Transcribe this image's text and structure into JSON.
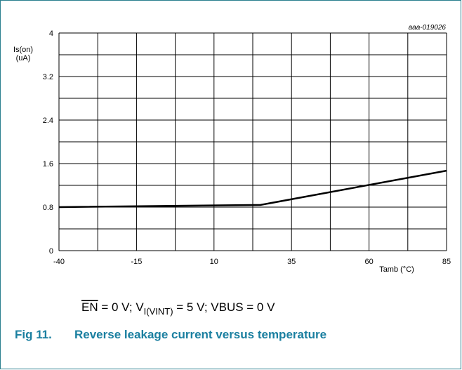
{
  "chart_data": {
    "type": "line",
    "code": "aaa-019026",
    "y_label": [
      "Is(on)",
      "(uA)"
    ],
    "x_label": "Tamb (°C)",
    "x": [
      -40,
      25,
      85
    ],
    "series": [
      {
        "color": "#000000",
        "values": [
          0.8,
          0.84,
          1.47
        ]
      }
    ],
    "xlim": [
      -40,
      85
    ],
    "xticks": [
      -40,
      -15,
      10,
      35,
      60,
      85
    ],
    "xminor_ticks": [
      -27.5,
      -2.5,
      22.5,
      47.5,
      72.5
    ],
    "ylim": [
      0,
      4
    ],
    "yticks": [
      0,
      0.8,
      1.6,
      2.4,
      3.2,
      4
    ],
    "yminor_ticks": [
      0.4,
      1.2,
      2,
      2.8,
      3.6
    ],
    "grid": true,
    "caption": {
      "overline": "EN",
      "part1": " = 0 V; V",
      "subscript": "I(VINT)",
      "part2": " = 5 V; VBUS = 0 V"
    },
    "figure_number": "Fig 11.",
    "figure_title": "Reverse leakage current versus temperature"
  }
}
